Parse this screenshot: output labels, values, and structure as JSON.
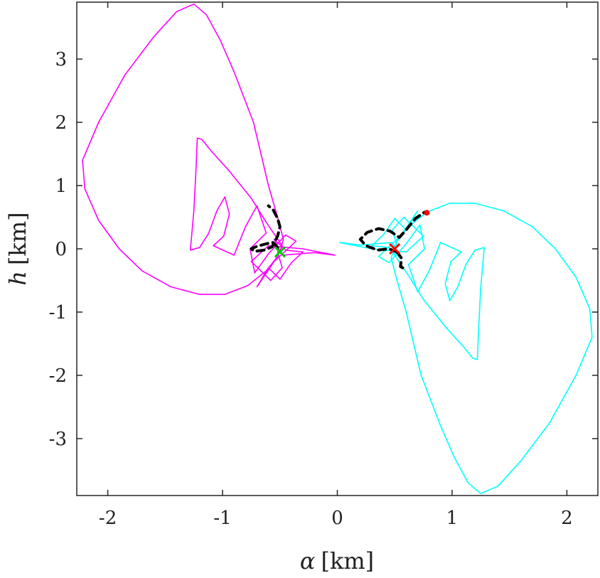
{
  "chart_data": {
    "type": "line",
    "xlabel": {
      "symbol": "α",
      "unit": "[km]"
    },
    "ylabel": {
      "symbol": "h",
      "unit": "[km]"
    },
    "xlim": [
      -2.27,
      2.27
    ],
    "ylim": [
      -3.9,
      3.9
    ],
    "xticks": [
      -2,
      -1,
      0,
      1,
      2
    ],
    "yticks": [
      -3,
      -2,
      -1,
      0,
      1,
      2,
      3
    ],
    "xtick_labels": [
      "-2",
      "-1",
      "0",
      "1",
      "2"
    ],
    "ytick_labels": [
      "-3",
      "-2",
      "-1",
      "0",
      "1",
      "2",
      "3"
    ],
    "grid": false,
    "series": [
      {
        "color": "#ff00ff",
        "style": "solid",
        "points": [
          [
            -0.5,
            -0.05
          ],
          [
            -0.47,
            0.15
          ],
          [
            -0.52,
            0.5
          ],
          [
            -0.6,
            1.0
          ],
          [
            -0.73,
            2.0
          ],
          [
            -0.9,
            2.8
          ],
          [
            -1.02,
            3.3
          ],
          [
            -1.14,
            3.7
          ],
          [
            -1.25,
            3.87
          ],
          [
            -1.4,
            3.75
          ],
          [
            -1.6,
            3.35
          ],
          [
            -1.85,
            2.75
          ],
          [
            -2.08,
            2.0
          ],
          [
            -2.22,
            1.4
          ],
          [
            -2.2,
            0.95
          ],
          [
            -2.08,
            0.45
          ],
          [
            -1.9,
            0.0
          ],
          [
            -1.7,
            -0.35
          ],
          [
            -1.45,
            -0.6
          ],
          [
            -1.2,
            -0.72
          ],
          [
            -0.98,
            -0.72
          ],
          [
            -0.78,
            -0.58
          ],
          [
            -0.62,
            -0.35
          ],
          [
            -0.52,
            -0.12
          ],
          [
            -0.48,
            0.05
          ],
          [
            -0.62,
            0.42
          ],
          [
            -0.75,
            0.8
          ],
          [
            -0.95,
            1.25
          ],
          [
            -1.1,
            1.55
          ],
          [
            -1.18,
            1.73
          ],
          [
            -1.22,
            1.75
          ],
          [
            -1.23,
            1.3
          ],
          [
            -1.25,
            0.6
          ],
          [
            -1.28,
            -0.02
          ],
          [
            -1.2,
            0.02
          ],
          [
            -1.12,
            0.25
          ],
          [
            -1.05,
            0.6
          ],
          [
            -0.98,
            0.82
          ],
          [
            -0.94,
            0.55
          ],
          [
            -0.99,
            0.2
          ],
          [
            -1.08,
            0.05
          ],
          [
            -0.9,
            -0.1
          ],
          [
            -0.8,
            0.35
          ],
          [
            -0.7,
            0.68
          ],
          [
            -0.62,
            0.25
          ],
          [
            -0.76,
            0.0
          ],
          [
            -0.72,
            -0.38
          ],
          [
            -0.6,
            -0.08
          ],
          [
            -0.45,
            0.22
          ],
          [
            -0.36,
            0.12
          ],
          [
            -0.55,
            -0.2
          ],
          [
            -0.7,
            -0.6
          ],
          [
            -0.6,
            -0.3
          ],
          [
            -0.5,
            -0.48
          ],
          [
            -0.4,
            -0.22
          ],
          [
            -0.3,
            -0.05
          ],
          [
            -0.45,
            -0.02
          ],
          [
            -0.55,
            0.15
          ],
          [
            -0.48,
            -0.1
          ],
          [
            -0.2,
            -0.06
          ],
          [
            -0.02,
            -0.1
          ],
          [
            -0.3,
            0.0
          ],
          [
            -0.6,
            0.05
          ],
          [
            -0.75,
            -0.2
          ],
          [
            -0.58,
            -0.5
          ],
          [
            -0.48,
            -0.3
          ],
          [
            -0.52,
            -0.05
          ]
        ]
      },
      {
        "color": "#00ffff",
        "style": "solid",
        "points": [
          [
            0.5,
            0.05
          ],
          [
            0.47,
            -0.15
          ],
          [
            0.52,
            -0.5
          ],
          [
            0.6,
            -1.0
          ],
          [
            0.73,
            -2.0
          ],
          [
            0.9,
            -2.8
          ],
          [
            1.02,
            -3.3
          ],
          [
            1.14,
            -3.7
          ],
          [
            1.25,
            -3.87
          ],
          [
            1.4,
            -3.75
          ],
          [
            1.6,
            -3.35
          ],
          [
            1.85,
            -2.75
          ],
          [
            2.08,
            -2.0
          ],
          [
            2.22,
            -1.4
          ],
          [
            2.2,
            -0.95
          ],
          [
            2.08,
            -0.45
          ],
          [
            1.9,
            0.0
          ],
          [
            1.7,
            0.35
          ],
          [
            1.45,
            0.6
          ],
          [
            1.2,
            0.72
          ],
          [
            0.98,
            0.72
          ],
          [
            0.78,
            0.58
          ],
          [
            0.62,
            0.35
          ],
          [
            0.52,
            0.12
          ],
          [
            0.48,
            -0.05
          ],
          [
            0.62,
            -0.42
          ],
          [
            0.75,
            -0.8
          ],
          [
            0.95,
            -1.25
          ],
          [
            1.1,
            -1.55
          ],
          [
            1.18,
            -1.73
          ],
          [
            1.22,
            -1.75
          ],
          [
            1.23,
            -1.3
          ],
          [
            1.25,
            -0.6
          ],
          [
            1.28,
            0.02
          ],
          [
            1.2,
            -0.02
          ],
          [
            1.12,
            -0.25
          ],
          [
            1.05,
            -0.6
          ],
          [
            0.98,
            -0.82
          ],
          [
            0.94,
            -0.55
          ],
          [
            0.99,
            -0.2
          ],
          [
            1.08,
            -0.05
          ],
          [
            0.9,
            0.1
          ],
          [
            0.8,
            -0.35
          ],
          [
            0.7,
            -0.68
          ],
          [
            0.62,
            -0.25
          ],
          [
            0.76,
            0.0
          ],
          [
            0.72,
            0.38
          ],
          [
            0.6,
            0.08
          ],
          [
            0.45,
            -0.22
          ],
          [
            0.36,
            -0.12
          ],
          [
            0.55,
            0.2
          ],
          [
            0.7,
            0.6
          ],
          [
            0.6,
            0.3
          ],
          [
            0.5,
            0.48
          ],
          [
            0.4,
            0.22
          ],
          [
            0.3,
            0.05
          ],
          [
            0.45,
            0.02
          ],
          [
            0.55,
            -0.15
          ],
          [
            0.48,
            0.1
          ],
          [
            0.2,
            0.06
          ],
          [
            0.02,
            0.1
          ],
          [
            0.3,
            0.0
          ],
          [
            0.6,
            -0.05
          ],
          [
            0.75,
            0.2
          ],
          [
            0.58,
            0.5
          ],
          [
            0.48,
            0.3
          ],
          [
            0.52,
            0.05
          ]
        ]
      },
      {
        "color": "#000000",
        "style": "dashed",
        "points": [
          [
            -0.52,
            0.02
          ],
          [
            -0.56,
            0.1
          ],
          [
            -0.62,
            0.08
          ],
          [
            -0.7,
            0.04
          ],
          [
            -0.75,
            0.0
          ],
          [
            -0.72,
            -0.04
          ],
          [
            -0.64,
            -0.02
          ],
          [
            -0.57,
            0.03
          ],
          [
            -0.52,
            0.2
          ],
          [
            -0.5,
            0.35
          ],
          [
            -0.52,
            0.48
          ],
          [
            -0.56,
            0.62
          ],
          [
            -0.6,
            0.68
          ]
        ]
      },
      {
        "color": "#000000",
        "style": "dashed",
        "points": [
          [
            0.52,
            -0.05
          ],
          [
            0.45,
            0.0
          ],
          [
            0.35,
            -0.02
          ],
          [
            0.25,
            0.05
          ],
          [
            0.2,
            0.15
          ],
          [
            0.26,
            0.26
          ],
          [
            0.36,
            0.32
          ],
          [
            0.46,
            0.28
          ],
          [
            0.54,
            0.18
          ],
          [
            0.6,
            0.3
          ],
          [
            0.68,
            0.48
          ],
          [
            0.76,
            0.58
          ],
          [
            0.78,
            0.57
          ]
        ]
      },
      {
        "color": "#000000",
        "style": "dashed",
        "points": [
          [
            0.52,
            -0.05
          ],
          [
            0.56,
            -0.15
          ],
          [
            0.55,
            -0.28
          ],
          [
            0.57,
            -0.3
          ]
        ]
      }
    ],
    "markers": [
      {
        "shape": "x",
        "color": "#00cc00",
        "x": -0.5,
        "y": -0.05
      },
      {
        "shape": "x",
        "color": "#ff0000",
        "x": 0.5,
        "y": 0.0
      },
      {
        "shape": "dot",
        "color": "#ff0000",
        "x": 0.78,
        "y": 0.57
      }
    ]
  }
}
